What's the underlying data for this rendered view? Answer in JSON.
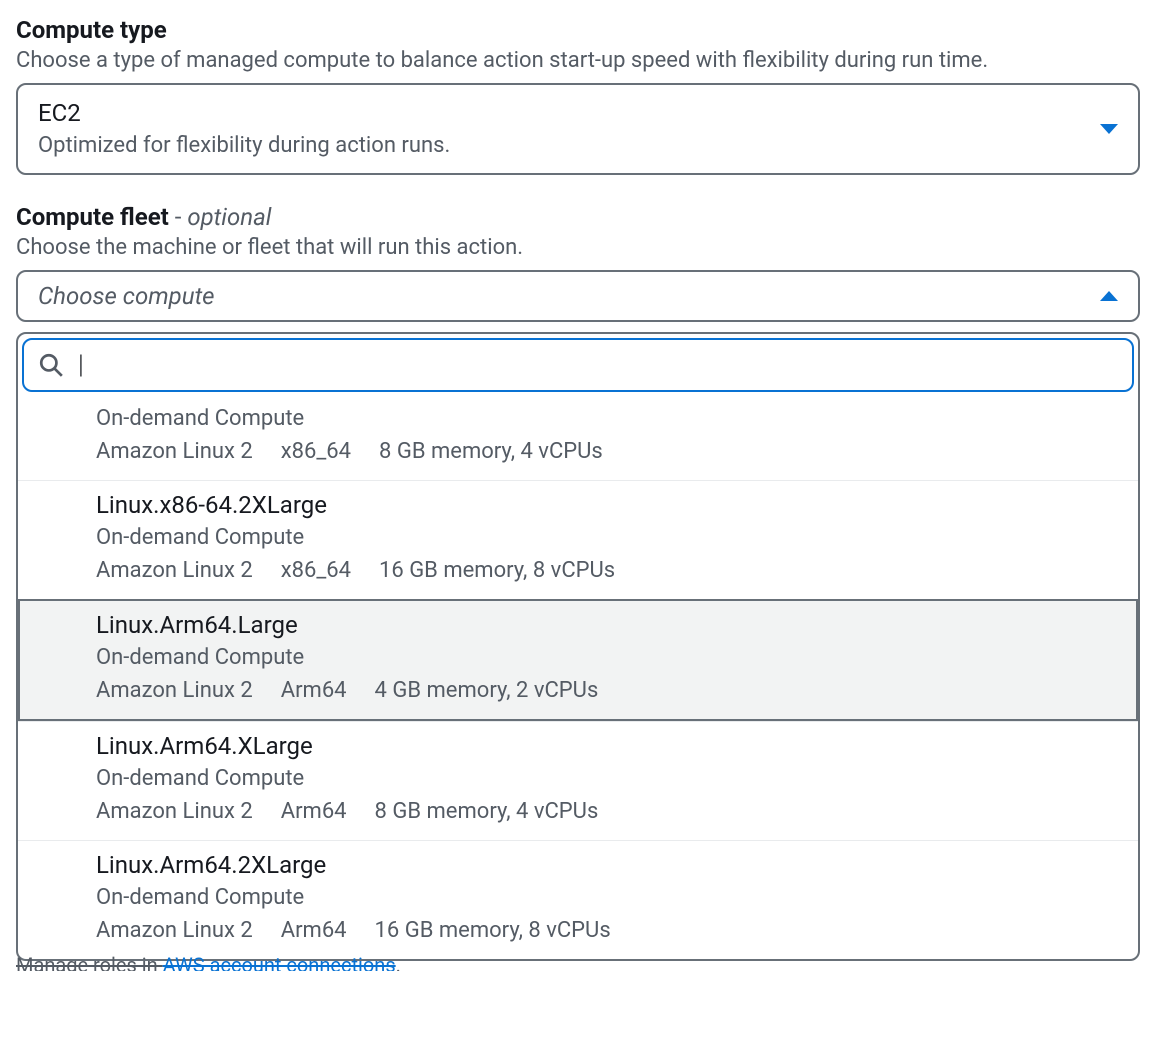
{
  "computeType": {
    "title": "Compute type",
    "description": "Choose a type of managed compute to balance action start-up speed with flexibility during run time.",
    "selectedValue": "EC2",
    "selectedSubtext": "Optimized for flexibility during action runs."
  },
  "computeFleet": {
    "title": "Compute fleet",
    "dash": " - ",
    "optional": "optional",
    "description": "Choose the machine or fleet that will run this action.",
    "placeholder": "Choose compute",
    "searchValue": "",
    "options": [
      {
        "name": "",
        "subLabel": "On-demand Compute",
        "os": "Amazon Linux 2",
        "arch": "x86_64",
        "specs": "8 GB memory, 4 vCPUs",
        "highlighted": false,
        "hideName": true
      },
      {
        "name": "Linux.x86-64.2XLarge",
        "subLabel": "On-demand Compute",
        "os": "Amazon Linux 2",
        "arch": "x86_64",
        "specs": "16 GB memory, 8 vCPUs",
        "highlighted": false
      },
      {
        "name": "Linux.Arm64.Large",
        "subLabel": "On-demand Compute",
        "os": "Amazon Linux 2",
        "arch": "Arm64",
        "specs": "4 GB memory, 2 vCPUs",
        "highlighted": true
      },
      {
        "name": "Linux.Arm64.XLarge",
        "subLabel": "On-demand Compute",
        "os": "Amazon Linux 2",
        "arch": "Arm64",
        "specs": "8 GB memory, 4 vCPUs",
        "highlighted": false
      },
      {
        "name": "Linux.Arm64.2XLarge",
        "subLabel": "On-demand Compute",
        "os": "Amazon Linux 2",
        "arch": "Arm64",
        "specs": "16 GB memory, 8 vCPUs",
        "highlighted": false
      }
    ]
  },
  "footer": {
    "prefix": "Manage roles in ",
    "link": "AWS account connections",
    "suffix": "."
  },
  "colors": {
    "primary": "#0972d3",
    "border": "#687078",
    "textPrimary": "#16191f",
    "textSecondary": "#545b64",
    "highlightBg": "#f2f3f3",
    "divider": "#e9ebed"
  }
}
